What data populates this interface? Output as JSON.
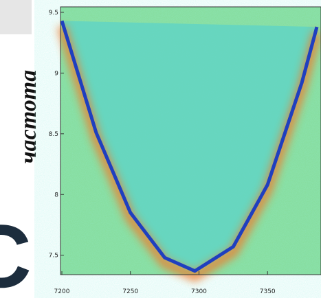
{
  "chart_data": {
    "type": "line",
    "y_label": "частота",
    "fragment_text": "C",
    "x": [
      7200,
      7225,
      7250,
      7275,
      7297,
      7325,
      7350,
      7375,
      7386
    ],
    "series": [
      {
        "color": "#1f3fbf",
        "values": [
          9.43,
          8.51,
          7.85,
          7.48,
          7.37,
          7.57,
          8.08,
          8.92,
          9.38
        ]
      }
    ],
    "xlim": [
      7199,
      7389
    ],
    "ylim": [
      7.34,
      9.545
    ],
    "xticks": [
      7200,
      7250,
      7300,
      7350
    ],
    "yticks": [
      7.5,
      8.0,
      8.5,
      9.0,
      9.5
    ]
  }
}
